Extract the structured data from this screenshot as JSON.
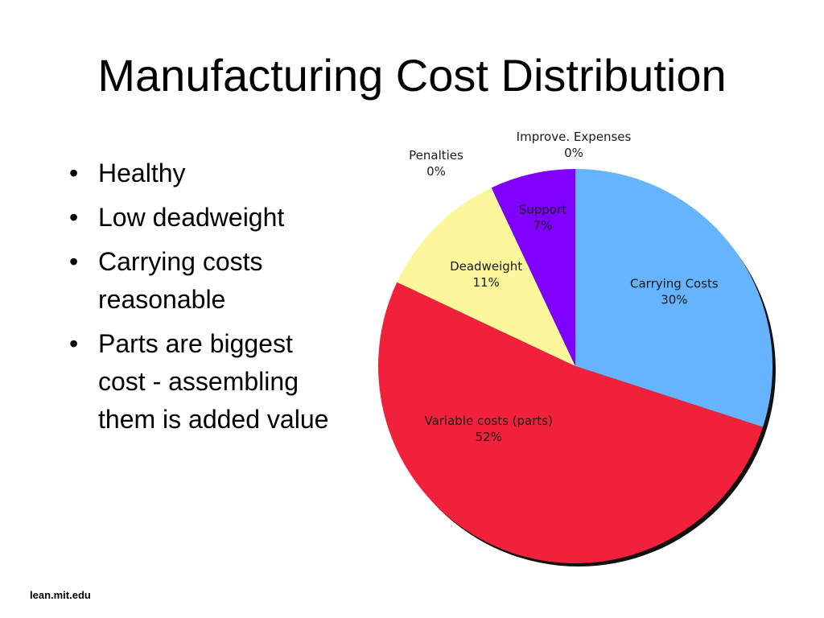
{
  "slide": {
    "title": "Manufacturing Cost Distribution",
    "bullets": [
      "Healthy",
      "Low deadweight",
      "Carrying costs reasonable",
      "Parts are biggest cost - assembling them is added value"
    ],
    "bullet_glyph": "•",
    "footer": "lean.mit.edu"
  },
  "chart_data": {
    "type": "pie",
    "title": "",
    "start": "12 o'clock, clockwise",
    "slices": [
      {
        "label": "Carrying Costs",
        "value": 30,
        "value_label": "30%",
        "color": "#66b3ff"
      },
      {
        "label": "Variable costs (parts)",
        "value": 52,
        "value_label": "52%",
        "color": "#f2213b"
      },
      {
        "label": "Deadweight",
        "value": 11,
        "value_label": "11%",
        "color": "#fbf79a"
      },
      {
        "label": "Penalties",
        "value": 0,
        "value_label": "0%",
        "color": "#ffffff"
      },
      {
        "label": "Support",
        "value": 7,
        "value_label": "7%",
        "color": "#8000ff"
      },
      {
        "label": "Improve. Expenses",
        "value": 0,
        "value_label": "0%",
        "color": "#ffffff"
      }
    ],
    "legend": "none, labels placed on slices"
  }
}
